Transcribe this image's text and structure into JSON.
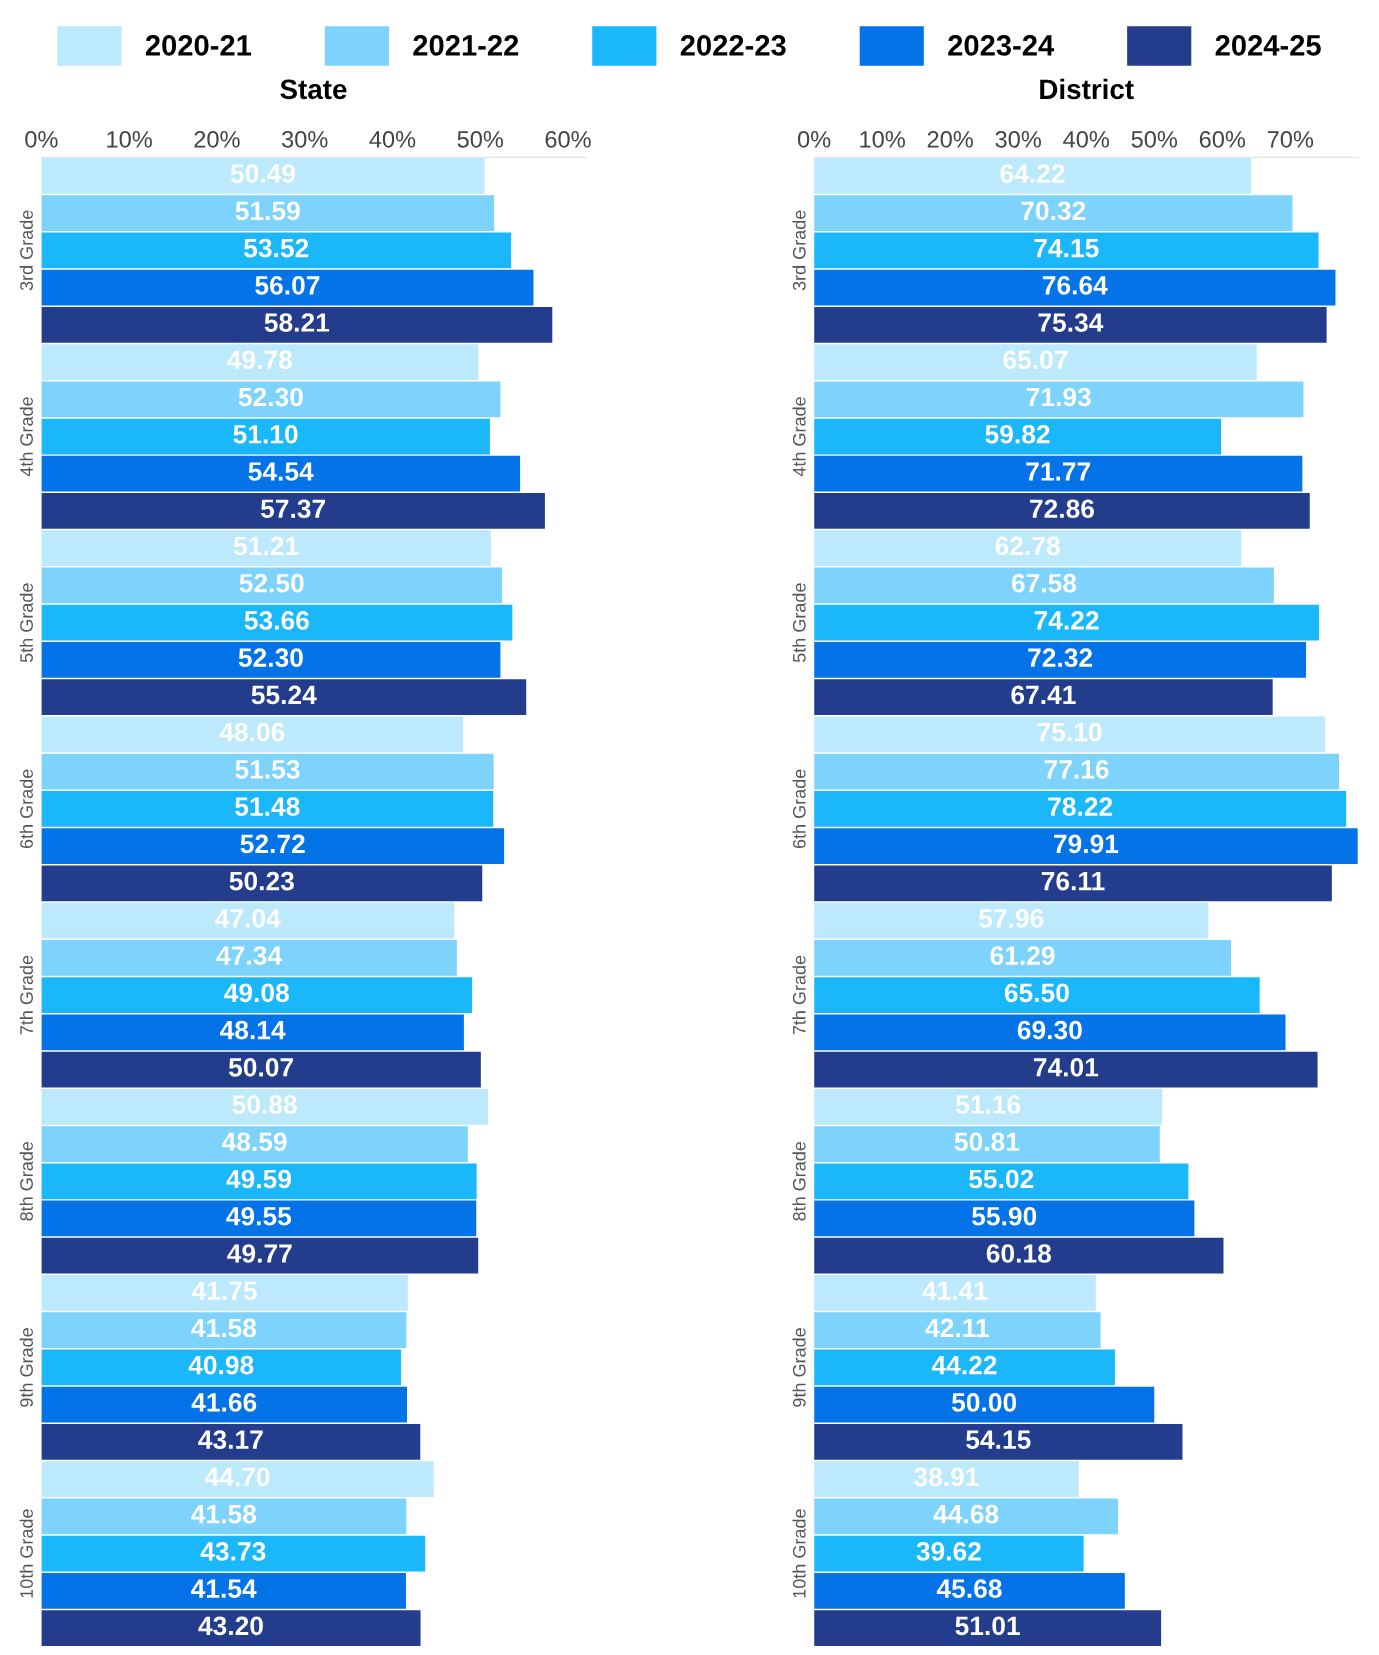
{
  "chart_data": [
    {
      "type": "bar",
      "orientation": "horizontal",
      "title": "State",
      "categories": [
        "3rd Grade",
        "4th Grade",
        "5th Grade",
        "6th Grade",
        "7th Grade",
        "8th Grade",
        "9th Grade",
        "10th Grade"
      ],
      "xlim": [
        0,
        62
      ],
      "xticks": [
        {
          "value": 0,
          "label": "0%"
        },
        {
          "value": 10,
          "label": "10%"
        },
        {
          "value": 20,
          "label": "20%"
        },
        {
          "value": 30,
          "label": "30%"
        },
        {
          "value": 40,
          "label": "40%"
        },
        {
          "value": 50,
          "label": "50%"
        },
        {
          "value": 60,
          "label": "60%"
        }
      ],
      "grid": false,
      "legend": "top",
      "series": [
        {
          "name": "2020-21",
          "color": "#bde9fc",
          "values": [
            50.49,
            49.78,
            51.21,
            48.06,
            47.04,
            50.88,
            41.75,
            44.7
          ],
          "value_labels": [
            "50.49",
            "49.78",
            "51.21",
            "48.06",
            "47.04",
            "50.88",
            "41.75",
            "44.70"
          ]
        },
        {
          "name": "2021-22",
          "color": "#7dd3fb",
          "values": [
            51.59,
            52.3,
            52.5,
            51.53,
            47.34,
            48.59,
            41.58,
            41.58
          ],
          "value_labels": [
            "51.59",
            "52.30",
            "52.50",
            "51.53",
            "47.34",
            "48.59",
            "41.58",
            "41.58"
          ]
        },
        {
          "name": "2022-23",
          "color": "#1ab8fb",
          "values": [
            53.52,
            51.1,
            53.66,
            51.48,
            49.08,
            49.59,
            40.98,
            43.73
          ],
          "value_labels": [
            "53.52",
            "51.10",
            "53.66",
            "51.48",
            "49.08",
            "49.59",
            "40.98",
            "43.73"
          ]
        },
        {
          "name": "2023-24",
          "color": "#0573e8",
          "values": [
            56.07,
            54.54,
            52.3,
            52.72,
            48.14,
            49.55,
            41.66,
            41.54
          ],
          "value_labels": [
            "56.07",
            "54.54",
            "52.30",
            "52.72",
            "48.14",
            "49.55",
            "41.66",
            "41.54"
          ]
        },
        {
          "name": "2024-25",
          "color": "#233c8c",
          "values": [
            58.21,
            57.37,
            55.24,
            50.23,
            50.07,
            49.77,
            43.17,
            43.2
          ],
          "value_labels": [
            "58.21",
            "57.37",
            "55.24",
            "50.23",
            "50.07",
            "49.77",
            "43.17",
            "43.20"
          ]
        }
      ]
    },
    {
      "type": "bar",
      "orientation": "horizontal",
      "title": "District",
      "categories": [
        "3rd Grade",
        "4th Grade",
        "5th Grade",
        "6th Grade",
        "7th Grade",
        "8th Grade",
        "9th Grade",
        "10th Grade"
      ],
      "xlim": [
        0,
        80
      ],
      "xticks": [
        {
          "value": 0,
          "label": "0%"
        },
        {
          "value": 10,
          "label": "10%"
        },
        {
          "value": 20,
          "label": "20%"
        },
        {
          "value": 30,
          "label": "30%"
        },
        {
          "value": 40,
          "label": "40%"
        },
        {
          "value": 50,
          "label": "50%"
        },
        {
          "value": 60,
          "label": "60%"
        },
        {
          "value": 70,
          "label": "70%"
        }
      ],
      "grid": false,
      "series": [
        {
          "color": "#bde9fc",
          "values": [
            64.22,
            65.07,
            62.78,
            75.1,
            57.96,
            51.16,
            41.41,
            38.91
          ],
          "value_labels": [
            "64.22",
            "65.07",
            "62.78",
            "75.10",
            "57.96",
            "51.16",
            "41.41",
            "38.91"
          ]
        },
        {
          "color": "#7dd3fb",
          "values": [
            70.32,
            71.93,
            67.58,
            77.16,
            61.29,
            50.81,
            42.11,
            44.68
          ],
          "value_labels": [
            "70.32",
            "71.93",
            "67.58",
            "77.16",
            "61.29",
            "50.81",
            "42.11",
            "44.68"
          ]
        },
        {
          "color": "#1ab8fb",
          "values": [
            74.15,
            59.82,
            74.22,
            78.22,
            65.5,
            55.02,
            44.22,
            39.62
          ],
          "value_labels": [
            "74.15",
            "59.82",
            "74.22",
            "78.22",
            "65.50",
            "55.02",
            "44.22",
            "39.62"
          ]
        },
        {
          "color": "#0573e8",
          "values": [
            76.64,
            71.77,
            72.32,
            79.91,
            69.3,
            55.9,
            50.0,
            45.68
          ],
          "value_labels": [
            "76.64",
            "71.77",
            "72.32",
            "79.91",
            "69.30",
            "55.90",
            "50.00",
            "45.68"
          ]
        },
        {
          "color": "#233c8c",
          "values": [
            75.34,
            72.86,
            67.41,
            76.11,
            74.01,
            60.18,
            54.15,
            51.01
          ],
          "value_labels": [
            "75.34",
            "72.86",
            "67.41",
            "76.11",
            "74.01",
            "60.18",
            "54.15",
            "51.01"
          ]
        }
      ]
    }
  ]
}
